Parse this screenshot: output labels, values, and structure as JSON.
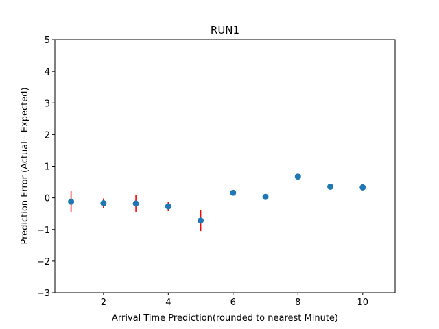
{
  "chart_data": {
    "type": "scatter",
    "title": "RUN1",
    "xlabel": "Arrival Time Prediction(rounded to nearest Minute)",
    "ylabel": "Prediction Error (Actual - Expected)",
    "xlim": [
      0.5,
      11
    ],
    "ylim": [
      -3,
      5
    ],
    "xticks": [
      2,
      4,
      6,
      8,
      10
    ],
    "yticks": [
      -3,
      -2,
      -1,
      0,
      1,
      2,
      3,
      4,
      5
    ],
    "ytick_labels": [
      "−3",
      "−2",
      "−1",
      "0",
      "1",
      "2",
      "3",
      "4",
      "5"
    ],
    "grid": false,
    "point_color": "#1f77b4",
    "errorbar_color": "#ff0000",
    "points": [
      {
        "x": 1,
        "y": -0.12,
        "err": 0.33
      },
      {
        "x": 2,
        "y": -0.17,
        "err": 0.15
      },
      {
        "x": 3,
        "y": -0.18,
        "err": 0.26
      },
      {
        "x": 4,
        "y": -0.27,
        "err": 0.15
      },
      {
        "x": 5,
        "y": -0.72,
        "err": 0.33
      },
      {
        "x": 6,
        "y": 0.16,
        "err": 0
      },
      {
        "x": 7,
        "y": 0.03,
        "err": 0
      },
      {
        "x": 8,
        "y": 0.67,
        "err": 0
      },
      {
        "x": 9,
        "y": 0.35,
        "err": 0
      },
      {
        "x": 10,
        "y": 0.33,
        "err": 0
      }
    ]
  }
}
